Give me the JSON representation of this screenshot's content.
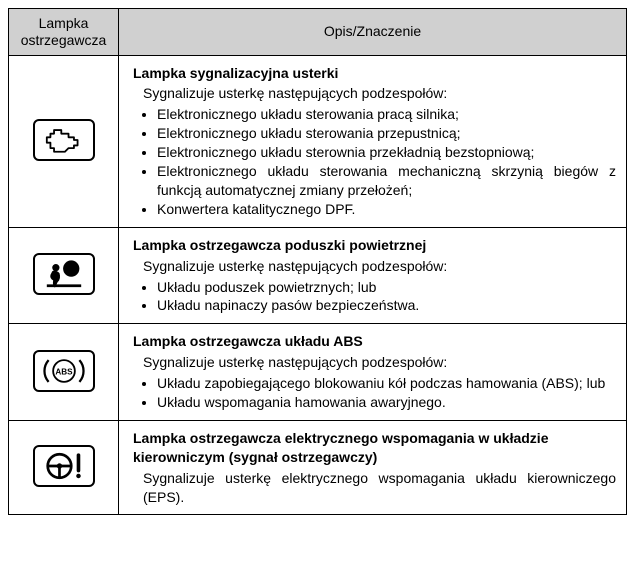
{
  "header": {
    "col1_line1": "Lampka",
    "col1_line2": "ostrzegawcza",
    "col2": "Opis/Znaczenie"
  },
  "header_bg": "#d0d0d0",
  "rows": [
    {
      "icon": "engine",
      "title": "Lampka sygnalizacyjna usterki",
      "intro": "Sygnalizuje usterkę następujących podzespołów:",
      "bullets": [
        "Elektronicznego układu sterowania pracą silnika;",
        "Elektronicznego układu sterowania przepustnicą;",
        "Elektronicznego układu sterownia przekładnią bezstopniową;",
        "Elektronicznego układu sterowania mechaniczną skrzynią biegów z funkcją automatycznej zmiany przełożeń;",
        "Konwertera katalitycznego DPF."
      ]
    },
    {
      "icon": "airbag",
      "title": "Lampka ostrzegawcza poduszki powietrznej",
      "intro": "Sygnalizuje usterkę następujących podzespołów:",
      "bullets": [
        "Układu poduszek powietrznych; lub",
        "Układu napinaczy pasów bezpieczeństwa."
      ]
    },
    {
      "icon": "abs",
      "title": "Lampka ostrzegawcza układu ABS",
      "intro": "Sygnalizuje usterkę następujących podzespołów:",
      "bullets": [
        "Układu zapobiegającego blokowaniu kół podczas hamowania (ABS); lub",
        "Układu wspomagania hamowania awaryjnego."
      ]
    },
    {
      "icon": "eps",
      "title": "Lampka ostrzegawcza elektrycznego wspomagania w układzie kierowniczym (sygnał ostrzegawczy)",
      "desc": "Sygnalizuje usterkę elektrycznego wspomagania układu kierowniczego (EPS)."
    }
  ]
}
